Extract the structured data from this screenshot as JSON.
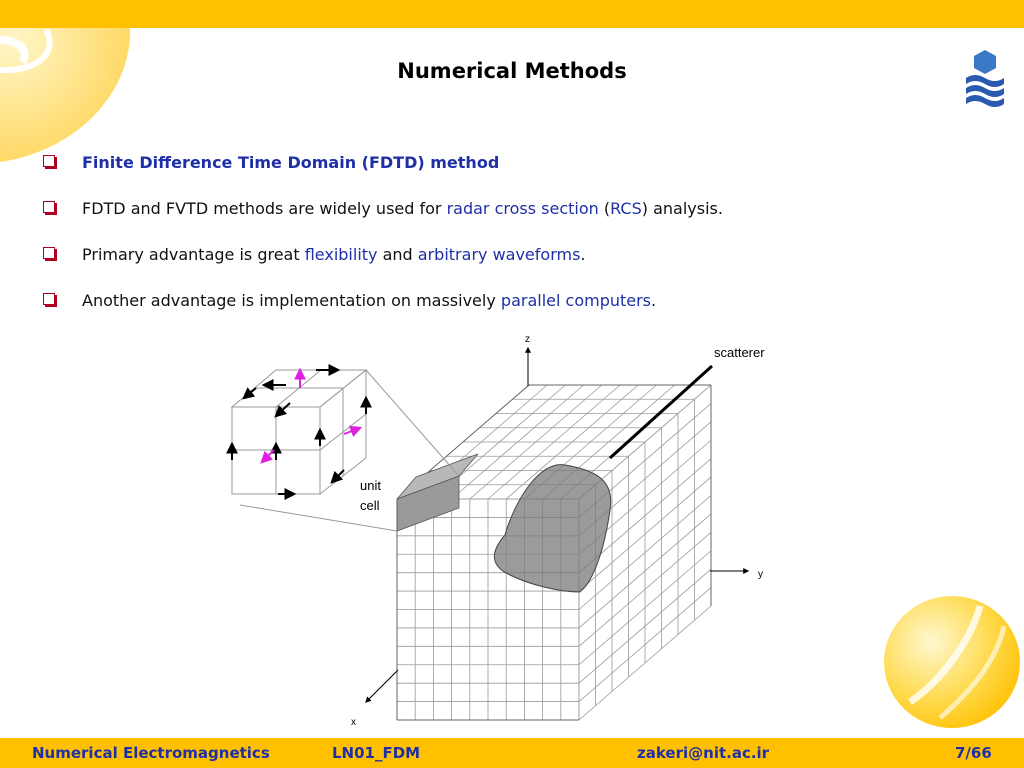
{
  "title": "Numerical Methods",
  "bullets": [
    {
      "segments": [
        {
          "text": "Finite Difference Time Domain (FDTD) method",
          "style": "plain"
        }
      ]
    },
    {
      "segments": [
        {
          "text": "FDTD and FVTD methods are widely used for ",
          "style": "plain"
        },
        {
          "text": "radar cross section",
          "style": "blue"
        },
        {
          "text": " (",
          "style": "plain"
        },
        {
          "text": "RCS",
          "style": "blue"
        },
        {
          "text": ") analysis.",
          "style": "plain"
        }
      ]
    },
    {
      "segments": [
        {
          "text": "Primary advantage is great ",
          "style": "plain"
        },
        {
          "text": "flexibility",
          "style": "blue"
        },
        {
          "text": " and ",
          "style": "plain"
        },
        {
          "text": "arbitrary waveforms",
          "style": "blue"
        },
        {
          "text": ".",
          "style": "plain"
        }
      ]
    },
    {
      "segments": [
        {
          "text": "Another advantage is implementation  on massively ",
          "style": "plain"
        },
        {
          "text": "parallel computers",
          "style": "blue"
        },
        {
          "text": ".",
          "style": "plain"
        }
      ]
    }
  ],
  "figure": {
    "axis_z": "z",
    "axis_y": "y",
    "axis_x": "x",
    "scatterer_label": "scatterer",
    "unit_cell_label_1": "unit",
    "unit_cell_label_2": "cell"
  },
  "footer": {
    "course": "Numerical Electromagnetics",
    "lecture": "LN01_FDM",
    "email": "zakeri@nit.ac.ir",
    "page": "7/66"
  },
  "colors": {
    "bar": "#ffc000",
    "footer_text": "#1f2fa8",
    "highlight": "#1f2fa8",
    "bullet_box": "#b00020",
    "field_arrow": "#e020e0"
  }
}
